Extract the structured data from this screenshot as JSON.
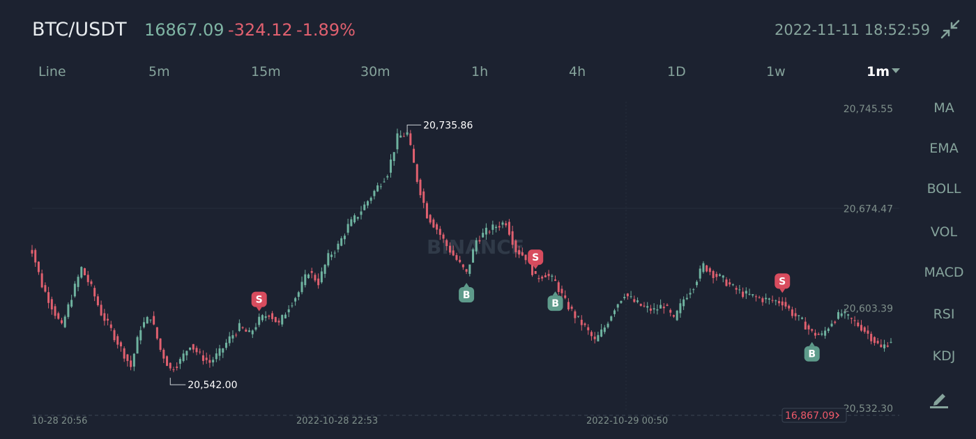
{
  "header": {
    "symbol": "BTC/USDT",
    "last_price": "16867.09",
    "change": "-324.12",
    "change_percent": "-1.89%",
    "timestamp": "2022-11-11 18:52:59",
    "collapse_icon": "collapse-arrows-icon"
  },
  "intervals": [
    "Line",
    "5m",
    "15m",
    "30m",
    "1h",
    "4h",
    "1D",
    "1w",
    "1m"
  ],
  "active_interval": "1m",
  "indicators": [
    "MA",
    "EMA",
    "BOLL",
    "VOL",
    "MACD",
    "RSI",
    "KDJ"
  ],
  "draw_tool_icon": "pencil-draw-icon",
  "watermark": "BINANCE",
  "colors": {
    "up": "#6fb3a0",
    "down": "#e0606f",
    "background": "#1c2230",
    "marker_sell": "#d84c5e",
    "marker_buy": "#5e9b8b"
  },
  "chart_data": {
    "type": "candlestick",
    "title": "",
    "y_axis_ticks": [
      "20,745.55",
      "20,674.47",
      "20,603.39",
      "20,532.30"
    ],
    "y_axis_tick_values": [
      20745.55,
      20674.47,
      20603.39,
      20532.3
    ],
    "x_axis_ticks": [
      "10-28 20:56",
      "2022-10-28 22:53",
      "2022-10-29 00:50"
    ],
    "ylim": [
      20532.3,
      20745.55
    ],
    "high_label": "20,735.86",
    "low_label": "20,542.00",
    "current_price_label": "16,867.09",
    "close_series": [
      20645,
      20620,
      20605,
      20590,
      20612,
      20632,
      20618,
      20600,
      20588,
      20575,
      20562,
      20590,
      20598,
      20574,
      20560,
      20566,
      20578,
      20570,
      20565,
      20572,
      20582,
      20590,
      20585,
      20595,
      20600,
      20592,
      20605,
      20615,
      20630,
      20622,
      20640,
      20648,
      20662,
      20670,
      20680,
      20690,
      20700,
      20725,
      20728,
      20695,
      20670,
      20660,
      20648,
      20638,
      20628,
      20652,
      20658,
      20662,
      20665,
      20645,
      20640,
      20625,
      20628,
      20622,
      20608,
      20598,
      20590,
      20580,
      20590,
      20604,
      20614,
      20608,
      20604,
      20602,
      20606,
      20595,
      20610,
      20620,
      20634,
      20628,
      20624,
      20618,
      20614,
      20612,
      20610,
      20609,
      20608,
      20600,
      20594,
      20586,
      20584,
      20594,
      20600,
      20595,
      20590,
      20583,
      20575,
      20581
    ],
    "markers": [
      {
        "type": "S",
        "index": 23
      },
      {
        "type": "B",
        "index": 44
      },
      {
        "type": "S",
        "index": 51
      },
      {
        "type": "B",
        "index": 53
      },
      {
        "type": "S",
        "index": 76
      },
      {
        "type": "B",
        "index": 79
      }
    ],
    "grid": false
  }
}
